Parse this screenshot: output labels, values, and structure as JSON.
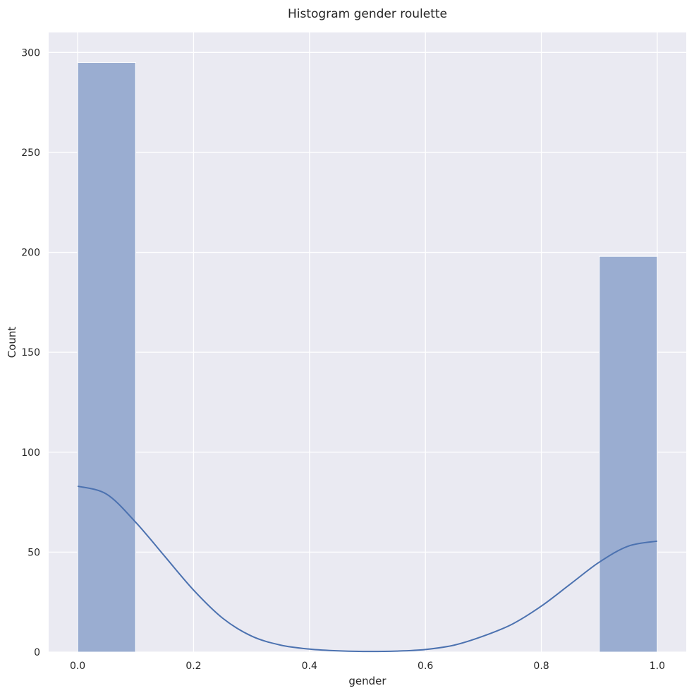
{
  "chart_data": {
    "type": "bar",
    "title": "Histogram gender roulette",
    "xlabel": "gender",
    "ylabel": "Count",
    "xlim": [
      -0.05,
      1.05
    ],
    "ylim": [
      0,
      310
    ],
    "x_ticks": [
      0.0,
      0.2,
      0.4,
      0.6,
      0.8,
      1.0
    ],
    "x_tick_labels": [
      "0.0",
      "0.2",
      "0.4",
      "0.6",
      "0.8",
      "1.0"
    ],
    "y_ticks": [
      0,
      50,
      100,
      150,
      200,
      250,
      300
    ],
    "y_tick_labels": [
      "0",
      "50",
      "100",
      "150",
      "200",
      "250",
      "300"
    ],
    "bins": [
      {
        "x0": 0.0,
        "x1": 0.1,
        "count": 295
      },
      {
        "x0": 0.9,
        "x1": 1.0,
        "count": 198
      }
    ],
    "kde": {
      "x": [
        0.0,
        0.05,
        0.1,
        0.15,
        0.2,
        0.25,
        0.3,
        0.35,
        0.4,
        0.45,
        0.5,
        0.55,
        0.6,
        0.65,
        0.7,
        0.75,
        0.8,
        0.85,
        0.9,
        0.95,
        1.0
      ],
      "y": [
        83,
        79,
        65,
        48,
        31,
        17,
        8,
        3.5,
        1.5,
        0.6,
        0.3,
        0.5,
        1.3,
        3.5,
        8,
        14,
        23,
        34,
        45,
        53,
        55.5
      ]
    },
    "grid": true,
    "background": "#eaeaf2",
    "bar_color": "#9aadd1",
    "line_color": "#4c72b0"
  }
}
